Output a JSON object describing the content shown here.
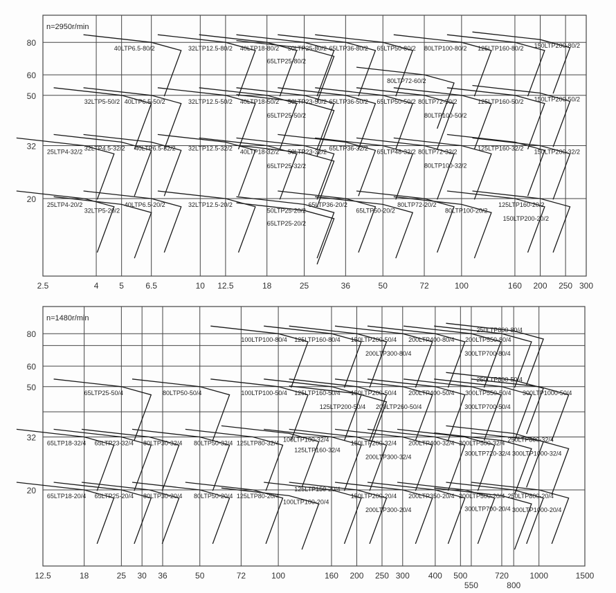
{
  "chart_data": [
    {
      "type": "line",
      "title": "n=2950r/min",
      "x_scale": "log",
      "y_scale": "log",
      "xlim": [
        2.5,
        300
      ],
      "ylim": [
        10,
        100
      ],
      "grid": true,
      "x_ticks": [
        "2.5",
        "4",
        "5",
        "6.5",
        "10",
        "12.5",
        "18",
        "25",
        "36",
        "50",
        "72",
        "100",
        "160",
        "200",
        "250",
        "300"
      ],
      "y_ticks": [
        "80",
        "60",
        "50",
        "32",
        "20"
      ],
      "y_grid_extra": [],
      "pumps": [
        {
          "label": "40LTP6.5-80/2",
          "q": 6.5,
          "h": 80
        },
        {
          "label": "32LTP12.5-80/2",
          "q": 12.5,
          "h": 80
        },
        {
          "label": "40LTP18-80/2",
          "q": 18,
          "h": 80
        },
        {
          "label": "50LTP25-80/2",
          "q": 25,
          "h": 80
        },
        {
          "label": "65LTP25-80/2",
          "q": 25,
          "h": 76
        },
        {
          "label": "65LTP36-80/2",
          "q": 36,
          "h": 80
        },
        {
          "label": "65LTP50-80/2",
          "q": 50,
          "h": 80
        },
        {
          "label": "80LTP100-80/2",
          "q": 100,
          "h": 80
        },
        {
          "label": "125LTP160-80/2",
          "q": 160,
          "h": 80
        },
        {
          "label": "150LTP200-80/2",
          "q": 200,
          "h": 82
        },
        {
          "label": "80LTP72-60/2",
          "q": 72,
          "h": 60
        },
        {
          "label": "32LTP5-50/2",
          "q": 5,
          "h": 50
        },
        {
          "label": "40LTP6.5-50/2",
          "q": 6.5,
          "h": 50
        },
        {
          "label": "32LTP12.5-50/2",
          "q": 12.5,
          "h": 50
        },
        {
          "label": "40LTP18-50/2",
          "q": 18,
          "h": 50
        },
        {
          "label": "50LTP23-50/2",
          "q": 25,
          "h": 50
        },
        {
          "label": "65LTP25-50/2",
          "q": 25,
          "h": 47
        },
        {
          "label": "65LTP36-50/2",
          "q": 36,
          "h": 50
        },
        {
          "label": "65LTP50-50/2",
          "q": 50,
          "h": 50
        },
        {
          "label": "80LTP72-50/2",
          "q": 72,
          "h": 50
        },
        {
          "label": "80LTP100-50/2",
          "q": 100,
          "h": 50
        },
        {
          "label": "125LTP160-50/2",
          "q": 160,
          "h": 50
        },
        {
          "label": "150LTP200-50/2",
          "q": 200,
          "h": 51
        },
        {
          "label": "25LTP4-32/2",
          "q": 3.6,
          "h": 32
        },
        {
          "label": "32LTP4.5-32/2",
          "q": 5,
          "h": 33
        },
        {
          "label": "40LTP6.5-32/2",
          "q": 6.5,
          "h": 33
        },
        {
          "label": "32LTP12.5-32/2",
          "q": 12.5,
          "h": 33
        },
        {
          "label": "40LTP18-32/2",
          "q": 18,
          "h": 32
        },
        {
          "label": "50LTP23-32/2",
          "q": 25,
          "h": 32
        },
        {
          "label": "65LTP25-32/2",
          "q": 25,
          "h": 30
        },
        {
          "label": "65LTP36-32/2",
          "q": 36,
          "h": 33
        },
        {
          "label": "65LTP48-32/2",
          "q": 50,
          "h": 32
        },
        {
          "label": "80LTP72-32/2",
          "q": 72,
          "h": 32
        },
        {
          "label": "80LTP100-32/2",
          "q": 100,
          "h": 32
        },
        {
          "label": "125LTP160-32/2",
          "q": 160,
          "h": 33
        },
        {
          "label": "150LTP200-32/2",
          "q": 200,
          "h": 32
        },
        {
          "label": "25LTP4-20/2",
          "q": 3.6,
          "h": 20
        },
        {
          "label": "32LTP5-20/2",
          "q": 5,
          "h": 19
        },
        {
          "label": "40LTP6.5-20/2",
          "q": 6.5,
          "h": 20
        },
        {
          "label": "32LTP12.5-20/2",
          "q": 12.5,
          "h": 20
        },
        {
          "label": "50LTP25-20/2",
          "q": 25,
          "h": 19
        },
        {
          "label": "65LTP25-20/2",
          "q": 25,
          "h": 18
        },
        {
          "label": "65LTP36-20/2",
          "q": 36,
          "h": 20
        },
        {
          "label": "65LTP50-20/2",
          "q": 50,
          "h": 19
        },
        {
          "label": "80LTP72-20/2",
          "q": 72,
          "h": 20
        },
        {
          "label": "80LTP100-20/2",
          "q": 100,
          "h": 19
        },
        {
          "label": "125LTP160-20/2",
          "q": 160,
          "h": 20
        },
        {
          "label": "150LTP200-20/2",
          "q": 200,
          "h": 20
        }
      ]
    },
    {
      "type": "line",
      "title": "n=1480r/min",
      "x_scale": "log",
      "y_scale": "log",
      "xlim": [
        12.5,
        1500
      ],
      "ylim": [
        10,
        100
      ],
      "grid": true,
      "x_ticks": [
        "12.5",
        "18",
        "25",
        "30",
        "36",
        "50",
        "72",
        "100",
        "160",
        "200",
        "250",
        "300",
        "400",
        "500",
        "550",
        "720",
        "800",
        "1000",
        "1500"
      ],
      "y_ticks": [
        "80",
        "60",
        "50",
        "32",
        "20"
      ],
      "y_grid_extra": [
        72,
        40
      ],
      "pumps": [
        {
          "label": "100LTP100-80/4",
          "q": 100,
          "h": 80
        },
        {
          "label": "125LTP160-80/4",
          "q": 160,
          "h": 80
        },
        {
          "label": "150LTP200-50/4",
          "q": 200,
          "h": 80
        },
        {
          "label": "200LTP300-80/4",
          "q": 300,
          "h": 80
        },
        {
          "label": "200LTP400-80/4",
          "q": 400,
          "h": 80
        },
        {
          "label": "200LTP550-80/4",
          "q": 550,
          "h": 80
        },
        {
          "label": "300LTP700-80/4",
          "q": 720,
          "h": 80
        },
        {
          "label": "250LTP800-80/4",
          "q": 800,
          "h": 82
        },
        {
          "label": "65LTP25-50/4",
          "q": 25,
          "h": 50
        },
        {
          "label": "80LTP50-50/4",
          "q": 50,
          "h": 50
        },
        {
          "label": "100LTP100-50/4",
          "q": 100,
          "h": 50
        },
        {
          "label": "125LTP160-50/4",
          "q": 160,
          "h": 50
        },
        {
          "label": "150LTP200-50/4",
          "q": 200,
          "h": 50
        },
        {
          "label": "125LTP200-50/4",
          "q": 200,
          "h": 47
        },
        {
          "label": "200LTP260-50/4",
          "q": 300,
          "h": 50
        },
        {
          "label": "200LTP400-50/4",
          "q": 400,
          "h": 50
        },
        {
          "label": "300LTP550-50/4",
          "q": 550,
          "h": 50
        },
        {
          "label": "300LTP700-50/4",
          "q": 720,
          "h": 50
        },
        {
          "label": "250LTP800-50/4",
          "q": 800,
          "h": 53
        },
        {
          "label": "300LTP1000-50/4",
          "q": 1000,
          "h": 50
        },
        {
          "label": "65LTP18-32/4",
          "q": 18,
          "h": 32
        },
        {
          "label": "65LTP23-32/4",
          "q": 25,
          "h": 32
        },
        {
          "label": "80LTP30-32/4",
          "q": 32,
          "h": 32
        },
        {
          "label": "80LTP50-32/4",
          "q": 50,
          "h": 32
        },
        {
          "label": "125LTP80-32/4",
          "q": 80,
          "h": 32
        },
        {
          "label": "100LTP100-32/4",
          "q": 110,
          "h": 33
        },
        {
          "label": "125LTP160-32/4",
          "q": 160,
          "h": 32
        },
        {
          "label": "150LTP200-32/4",
          "q": 200,
          "h": 32
        },
        {
          "label": "200LTP300-32/4",
          "q": 300,
          "h": 32
        },
        {
          "label": "200LTP400-32/4",
          "q": 400,
          "h": 32
        },
        {
          "label": "200LTP500-32/4",
          "q": 520,
          "h": 32
        },
        {
          "label": "250LTP800-32/4",
          "q": 800,
          "h": 33
        },
        {
          "label": "300LTP720-32/4",
          "q": 720,
          "h": 31
        },
        {
          "label": "300LTP1000-32/4",
          "q": 1000,
          "h": 31
        },
        {
          "label": "65LTP18-20/4",
          "q": 18,
          "h": 20
        },
        {
          "label": "65LTP25-20/4",
          "q": 25,
          "h": 20
        },
        {
          "label": "80LTP30-20/4",
          "q": 32,
          "h": 20
        },
        {
          "label": "80LTP50-20/4",
          "q": 50,
          "h": 20
        },
        {
          "label": "125LTP80-20/4",
          "q": 80,
          "h": 20
        },
        {
          "label": "100LTP100-20/4",
          "q": 110,
          "h": 19
        },
        {
          "label": "125LTP150-20/4",
          "q": 160,
          "h": 20
        },
        {
          "label": "150LTP200-20/4",
          "q": 200,
          "h": 20
        },
        {
          "label": "200LTP300-20/4",
          "q": 300,
          "h": 20
        },
        {
          "label": "200LTP350-20/4",
          "q": 400,
          "h": 20
        },
        {
          "label": "200LTP500-20/4",
          "q": 520,
          "h": 20
        },
        {
          "label": "300LTP700-20/4",
          "q": 720,
          "h": 19
        },
        {
          "label": "250LTP800-20/4",
          "q": 800,
          "h": 20
        },
        {
          "label": "300LTP1000-20/4",
          "q": 1000,
          "h": 20
        }
      ]
    }
  ]
}
